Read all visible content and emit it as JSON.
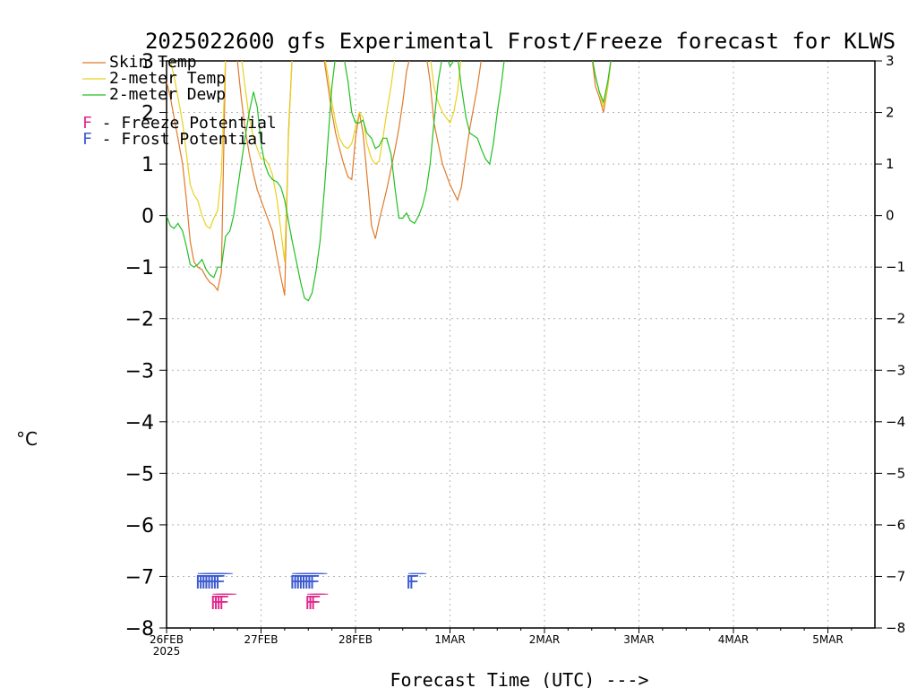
{
  "chart_data": {
    "type": "line",
    "title": "2025022600 gfs Experimental Frost/Freeze forecast for KLWS",
    "ylabel": "°C",
    "xlabel": "Forecast Time (UTC) --->",
    "ylim": [
      -8,
      3
    ],
    "xlim": [
      0,
      7.5
    ],
    "x_units": "days since 26FEB 00Z",
    "grid": true,
    "yticks": [
      -8,
      -7,
      -6,
      -5,
      -4,
      -3,
      -2,
      -1,
      0,
      1,
      2,
      3
    ],
    "yticks_right": [
      -8,
      -7,
      -6,
      -5,
      -4,
      -3,
      -2,
      -1,
      0,
      1,
      2,
      3
    ],
    "xtick_labels": [
      "26FEB",
      "27FEB",
      "28FEB",
      "1MAR",
      "2MAR",
      "3MAR",
      "4MAR",
      "5MAR"
    ],
    "xtick_sub": "2025",
    "colors": {
      "skin": "#e07a2a",
      "t2m": "#e8d21e",
      "dewp": "#22c022",
      "freeze": "#e0288c",
      "frost": "#3c5ad0"
    },
    "legend": {
      "position": "top-left",
      "entries": [
        {
          "label": "Skin Temp",
          "color": "#e07a2a"
        },
        {
          "label": "2-meter Temp",
          "color": "#e8d21e"
        },
        {
          "label": "2-meter Dewp",
          "color": "#22c022"
        }
      ],
      "freeze_label": "F - Freeze Potential",
      "frost_label": "F - Frost Potential",
      "marker_letter": "F"
    },
    "series": [
      {
        "name": "Skin Temp",
        "color": "#e07a2a",
        "x": [
          0,
          0.04,
          0.08,
          0.12,
          0.17,
          0.21,
          0.25,
          0.29,
          0.33,
          0.375,
          0.42,
          0.46,
          0.5,
          0.54,
          0.58,
          0.625,
          0.67,
          0.71,
          0.75,
          0.79,
          0.83,
          0.875,
          0.92,
          0.96,
          1.0,
          1.04,
          1.08,
          1.12,
          1.17,
          1.21,
          1.25,
          1.29,
          1.33,
          1.375,
          1.42,
          1.46,
          1.5,
          1.54,
          1.58,
          1.625,
          1.67,
          1.71,
          1.75,
          1.79,
          1.83,
          1.875,
          1.92,
          1.96,
          2.0,
          2.04,
          2.08,
          2.12,
          2.17,
          2.21,
          2.25,
          2.29,
          2.33,
          2.375,
          2.42,
          2.46,
          2.5,
          2.54,
          2.58,
          2.625,
          2.67,
          2.71,
          2.75,
          2.79,
          2.83,
          2.875,
          2.92,
          2.96,
          3.0,
          3.04,
          3.08,
          3.12,
          3.17,
          3.21,
          3.25,
          3.29,
          3.33,
          3.375,
          3.42,
          3.46,
          3.5,
          3.54,
          3.58,
          3.625,
          3.67,
          3.71,
          3.75,
          3.79,
          3.83,
          3.875,
          3.92,
          3.96,
          4.0,
          4.5,
          4.54,
          4.58,
          4.625,
          4.67,
          4.71,
          4.75
        ],
        "y": [
          2.6,
          2.3,
          1.9,
          1.5,
          1.0,
          0.3,
          -0.5,
          -0.9,
          -1.0,
          -1.05,
          -1.2,
          -1.3,
          -1.35,
          -1.45,
          -1.1,
          3.1,
          3.1,
          3.1,
          3.0,
          2.3,
          1.7,
          1.2,
          0.8,
          0.5,
          0.3,
          0.1,
          -0.1,
          -0.3,
          -0.8,
          -1.2,
          -1.55,
          1.6,
          3.1,
          3.1,
          3.1,
          3.1,
          3.1,
          3.1,
          3.1,
          3.1,
          3.0,
          2.5,
          2.0,
          1.6,
          1.3,
          1.0,
          0.75,
          0.7,
          1.5,
          2.0,
          1.6,
          0.8,
          -0.2,
          -0.45,
          -0.1,
          0.2,
          0.5,
          0.9,
          1.3,
          1.7,
          2.2,
          2.8,
          3.1,
          3.1,
          3.1,
          3.1,
          3.1,
          2.6,
          1.8,
          1.4,
          1.0,
          0.8,
          0.6,
          0.45,
          0.3,
          0.55,
          1.2,
          1.7,
          2.1,
          2.5,
          3.0,
          3.1,
          3.1,
          3.1,
          3.1,
          3.1,
          3.1,
          3.1,
          3.1,
          3.1,
          3.1,
          3.1,
          3.1,
          3.1,
          3.1,
          3.1,
          3.1,
          3.1,
          2.5,
          2.3,
          2.0,
          2.5,
          3.1,
          3.1
        ]
      },
      {
        "name": "2-meter Temp",
        "color": "#e8d21e",
        "x": [
          0,
          0.04,
          0.08,
          0.12,
          0.17,
          0.21,
          0.25,
          0.29,
          0.33,
          0.375,
          0.42,
          0.46,
          0.5,
          0.54,
          0.58,
          0.625,
          0.67,
          0.71,
          0.75,
          0.79,
          0.83,
          0.875,
          0.92,
          0.96,
          1.0,
          1.04,
          1.08,
          1.12,
          1.17,
          1.21,
          1.25,
          1.29,
          1.33,
          1.375,
          1.42,
          1.46,
          1.5,
          1.54,
          1.58,
          1.625,
          1.67,
          1.71,
          1.75,
          1.79,
          1.83,
          1.875,
          1.92,
          1.96,
          2.0,
          2.04,
          2.08,
          2.12,
          2.17,
          2.21,
          2.25,
          2.29,
          2.33,
          2.375,
          2.42,
          2.46,
          2.5,
          2.54,
          2.58,
          2.625,
          2.67,
          2.71,
          2.75,
          2.79,
          2.83,
          2.875,
          2.92,
          2.96,
          3.0,
          3.04,
          3.08,
          3.12,
          3.17,
          3.21,
          3.25,
          3.29,
          3.33,
          3.375,
          3.42,
          3.46,
          3.5,
          3.54,
          3.58,
          3.625,
          3.67,
          3.71,
          3.75,
          3.79,
          3.83,
          3.875,
          3.92,
          3.96,
          4.0,
          4.5,
          4.54,
          4.58,
          4.625,
          4.67,
          4.71,
          4.75
        ],
        "y": [
          3.1,
          3.0,
          2.7,
          2.3,
          1.8,
          1.2,
          0.6,
          0.4,
          0.3,
          0.0,
          -0.2,
          -0.25,
          -0.05,
          0.1,
          0.8,
          3.1,
          3.1,
          3.1,
          3.1,
          3.1,
          2.5,
          1.9,
          1.5,
          1.3,
          1.1,
          1.1,
          1.0,
          0.8,
          0.3,
          -0.3,
          -0.9,
          1.5,
          3.1,
          3.1,
          3.1,
          3.1,
          3.1,
          3.1,
          3.1,
          3.1,
          3.1,
          2.7,
          2.2,
          1.8,
          1.5,
          1.35,
          1.3,
          1.4,
          1.7,
          2.0,
          1.9,
          1.4,
          1.1,
          1.0,
          1.05,
          1.5,
          2.0,
          2.5,
          3.1,
          3.1,
          3.1,
          3.1,
          3.1,
          3.1,
          3.1,
          3.1,
          3.1,
          3.1,
          2.5,
          2.2,
          2.0,
          1.9,
          1.8,
          2.0,
          2.4,
          3.1,
          3.1,
          3.1,
          3.1,
          3.1,
          3.1,
          3.1,
          3.1,
          3.1,
          3.1,
          3.1,
          3.1,
          3.1,
          3.1,
          3.1,
          3.1,
          3.1,
          3.1,
          3.1,
          3.1,
          3.1,
          3.1,
          3.1,
          2.7,
          2.4,
          2.1,
          2.5,
          3.1,
          3.1
        ]
      },
      {
        "name": "2-meter Dewp",
        "color": "#22c022",
        "x": [
          0,
          0.04,
          0.08,
          0.12,
          0.17,
          0.21,
          0.25,
          0.29,
          0.33,
          0.375,
          0.42,
          0.46,
          0.5,
          0.54,
          0.58,
          0.625,
          0.67,
          0.71,
          0.75,
          0.79,
          0.83,
          0.875,
          0.92,
          0.96,
          1.0,
          1.04,
          1.08,
          1.12,
          1.17,
          1.21,
          1.25,
          1.29,
          1.33,
          1.375,
          1.42,
          1.46,
          1.5,
          1.54,
          1.58,
          1.625,
          1.67,
          1.71,
          1.75,
          1.79,
          1.83,
          1.875,
          1.92,
          1.96,
          2.0,
          2.04,
          2.08,
          2.12,
          2.17,
          2.21,
          2.25,
          2.29,
          2.33,
          2.375,
          2.42,
          2.46,
          2.5,
          2.54,
          2.58,
          2.625,
          2.67,
          2.71,
          2.75,
          2.79,
          2.83,
          2.875,
          2.92,
          2.96,
          3.0,
          3.04,
          3.08,
          3.12,
          3.17,
          3.21,
          3.25,
          3.29,
          3.33,
          3.375,
          3.42,
          3.46,
          3.5,
          3.54,
          3.58,
          3.625,
          3.67,
          3.71,
          3.75,
          3.79,
          3.83,
          3.875,
          3.92,
          3.96,
          4.0,
          4.5,
          4.54,
          4.58,
          4.625,
          4.67,
          4.71,
          4.75
        ],
        "y": [
          0.0,
          -0.2,
          -0.25,
          -0.15,
          -0.3,
          -0.6,
          -0.95,
          -1.0,
          -0.95,
          -0.85,
          -1.05,
          -1.15,
          -1.2,
          -1.0,
          -1.0,
          -0.4,
          -0.3,
          0.0,
          0.5,
          1.0,
          1.5,
          2.0,
          2.4,
          2.1,
          1.4,
          1.0,
          0.8,
          0.7,
          0.65,
          0.55,
          0.3,
          -0.1,
          -0.5,
          -0.9,
          -1.3,
          -1.6,
          -1.65,
          -1.5,
          -1.1,
          -0.5,
          0.5,
          1.5,
          2.5,
          3.1,
          3.1,
          3.1,
          2.6,
          2.0,
          1.8,
          1.8,
          1.85,
          1.6,
          1.5,
          1.3,
          1.35,
          1.5,
          1.5,
          1.2,
          0.5,
          -0.05,
          -0.05,
          0.05,
          -0.1,
          -0.15,
          0.0,
          0.2,
          0.5,
          1.0,
          1.8,
          2.6,
          3.1,
          3.1,
          2.9,
          3.0,
          3.1,
          2.5,
          1.9,
          1.6,
          1.55,
          1.5,
          1.3,
          1.1,
          1.0,
          1.4,
          2.0,
          2.5,
          3.1,
          3.1,
          3.1,
          3.1,
          3.1,
          3.1,
          3.1,
          3.1,
          3.1,
          3.1,
          3.1,
          3.1,
          2.7,
          2.4,
          2.2,
          2.6,
          3.1,
          3.1
        ]
      }
    ],
    "frost_x": [
      0.3,
      0.33,
      0.36,
      0.39,
      0.42,
      0.45,
      0.48,
      0.51,
      1.3,
      1.33,
      1.36,
      1.39,
      1.42,
      1.45,
      1.48,
      1.51,
      2.53,
      2.56
    ],
    "frost_y": -7.1,
    "freeze_x": [
      0.46,
      0.49,
      0.52,
      0.55,
      1.46,
      1.49,
      1.52
    ],
    "freeze_y": -7.5
  }
}
